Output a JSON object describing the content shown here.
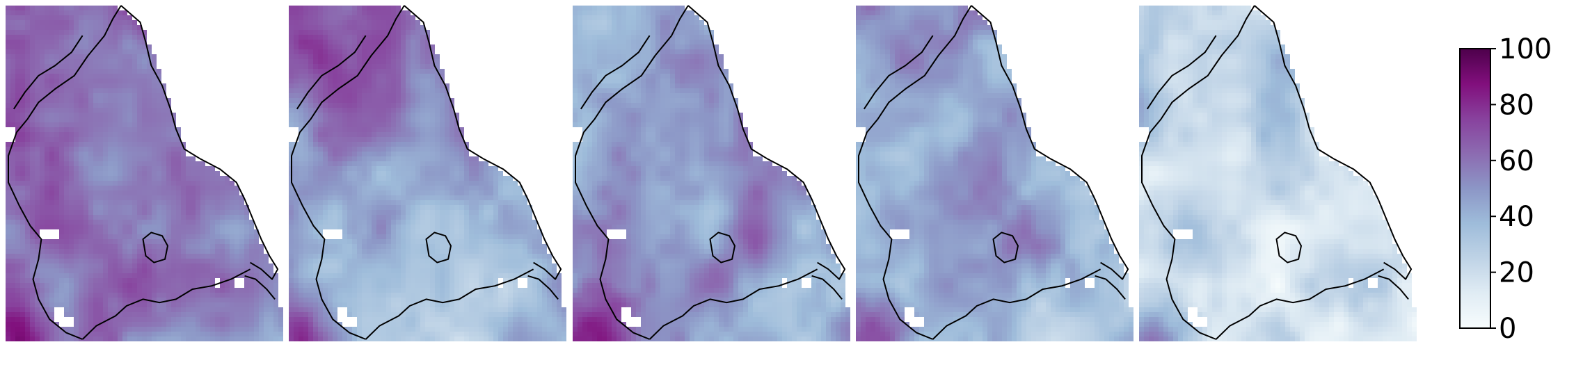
{
  "panels": [
    {
      "id": 1,
      "name": "map-panel-1"
    },
    {
      "id": 2,
      "name": "map-panel-2"
    },
    {
      "id": 3,
      "name": "map-panel-3"
    },
    {
      "id": 4,
      "name": "map-panel-4"
    },
    {
      "id": 5,
      "name": "map-panel-5"
    }
  ],
  "colorbar": {
    "min": 0,
    "max": 100,
    "ticks": [
      "0",
      "20",
      "40",
      "60",
      "80",
      "100"
    ],
    "colormap": "BuPu",
    "colors": [
      "#f7fcfd",
      "#e0ecf4",
      "#bfd3e6",
      "#9ebcda",
      "#8c96c6",
      "#8c6bb1",
      "#88419d",
      "#810f7c",
      "#4d004b"
    ]
  },
  "colors": {
    "boundary": "#000000",
    "background": "#ffffff"
  }
}
